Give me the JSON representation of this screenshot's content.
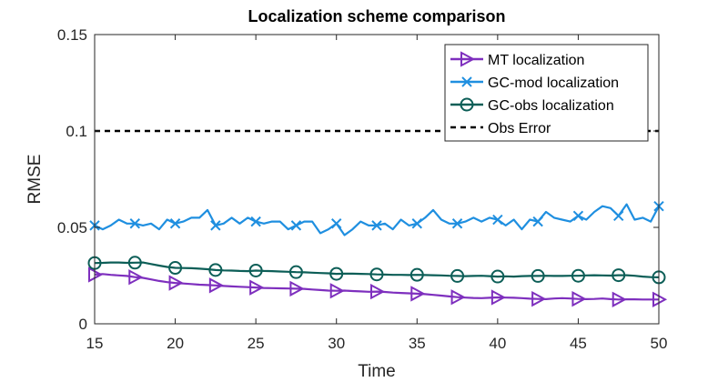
{
  "chart_data": {
    "type": "line",
    "title": "Localization scheme comparison",
    "xlabel": "Time",
    "ylabel": "RMSE",
    "xlim": [
      15,
      50
    ],
    "ylim": [
      0,
      0.15
    ],
    "x_ticks": [
      "15",
      "20",
      "25",
      "30",
      "35",
      "40",
      "45",
      "50"
    ],
    "y_ticks": [
      "0",
      "0.05",
      "0.1",
      "0.15"
    ],
    "legend_position": "top-right",
    "x": [
      15,
      15.5,
      16,
      16.5,
      17,
      17.5,
      18,
      18.5,
      19,
      19.5,
      20,
      20.5,
      21,
      21.5,
      22,
      22.5,
      23,
      23.5,
      24,
      24.5,
      25,
      25.5,
      26,
      26.5,
      27,
      27.5,
      28,
      28.5,
      29,
      29.5,
      30,
      30.5,
      31,
      31.5,
      32,
      32.5,
      33,
      33.5,
      34,
      34.5,
      35,
      35.5,
      36,
      36.5,
      37,
      37.5,
      38,
      38.5,
      39,
      39.5,
      40,
      40.5,
      41,
      41.5,
      42,
      42.5,
      43,
      43.5,
      44,
      44.5,
      45,
      45.5,
      46,
      46.5,
      47,
      47.5,
      48,
      48.5,
      49,
      49.5,
      50
    ],
    "series": [
      {
        "name": "MT localization",
        "color": "#7E2FBE",
        "marker": "triangle-right",
        "marker_every": 5,
        "values": [
          0.0255,
          0.0258,
          0.0254,
          0.0251,
          0.0248,
          0.0242,
          0.0238,
          0.023,
          0.0222,
          0.0216,
          0.0212,
          0.0209,
          0.0206,
          0.0203,
          0.0201,
          0.0199,
          0.0196,
          0.0194,
          0.0192,
          0.019,
          0.0188,
          0.0186,
          0.0185,
          0.0184,
          0.0183,
          0.0182,
          0.0181,
          0.0178,
          0.0175,
          0.0172,
          0.0171,
          0.0172,
          0.017,
          0.0168,
          0.0166,
          0.0167,
          0.0165,
          0.0162,
          0.016,
          0.0158,
          0.0156,
          0.0154,
          0.015,
          0.0146,
          0.0142,
          0.0138,
          0.0136,
          0.0134,
          0.0133,
          0.0135,
          0.0137,
          0.0136,
          0.0135,
          0.0133,
          0.013,
          0.0129,
          0.0128,
          0.0131,
          0.0133,
          0.0131,
          0.0129,
          0.0128,
          0.0129,
          0.0131,
          0.0128,
          0.0126,
          0.0127,
          0.0127,
          0.0126,
          0.0126,
          0.0126
        ]
      },
      {
        "name": "GC-mod localization",
        "color": "#1F8FE0",
        "marker": "x",
        "marker_every": 5,
        "values": [
          0.051,
          0.049,
          0.051,
          0.054,
          0.052,
          0.052,
          0.051,
          0.052,
          0.049,
          0.054,
          0.052,
          0.053,
          0.055,
          0.055,
          0.059,
          0.051,
          0.052,
          0.055,
          0.052,
          0.055,
          0.053,
          0.052,
          0.053,
          0.053,
          0.049,
          0.051,
          0.053,
          0.053,
          0.047,
          0.049,
          0.052,
          0.046,
          0.049,
          0.053,
          0.051,
          0.051,
          0.052,
          0.049,
          0.054,
          0.051,
          0.052,
          0.055,
          0.059,
          0.054,
          0.052,
          0.052,
          0.053,
          0.055,
          0.053,
          0.055,
          0.054,
          0.051,
          0.054,
          0.049,
          0.054,
          0.053,
          0.058,
          0.055,
          0.054,
          0.053,
          0.056,
          0.054,
          0.058,
          0.061,
          0.06,
          0.056,
          0.062,
          0.054,
          0.055,
          0.053,
          0.061
        ]
      },
      {
        "name": "GC-obs localization",
        "color": "#0C5E57",
        "marker": "circle",
        "marker_every": 5,
        "values": [
          0.0315,
          0.0316,
          0.0318,
          0.0318,
          0.0316,
          0.0317,
          0.0318,
          0.031,
          0.0302,
          0.0295,
          0.029,
          0.0289,
          0.0288,
          0.0286,
          0.0283,
          0.0279,
          0.0277,
          0.0276,
          0.0274,
          0.0273,
          0.0276,
          0.0274,
          0.0273,
          0.0271,
          0.027,
          0.0268,
          0.0267,
          0.0265,
          0.0263,
          0.0262,
          0.0259,
          0.026,
          0.026,
          0.0259,
          0.0258,
          0.0256,
          0.0255,
          0.0254,
          0.0254,
          0.0253,
          0.0254,
          0.0253,
          0.0252,
          0.0251,
          0.0249,
          0.0248,
          0.0247,
          0.0248,
          0.0249,
          0.0247,
          0.0245,
          0.0246,
          0.0245,
          0.0247,
          0.0248,
          0.0248,
          0.0249,
          0.0248,
          0.0248,
          0.0249,
          0.0249,
          0.0251,
          0.0252,
          0.0251,
          0.025,
          0.0252,
          0.0252,
          0.0249,
          0.0245,
          0.0242,
          0.0241
        ]
      },
      {
        "name": "Obs Error",
        "color": "#000000",
        "style": "dashed",
        "constant": 0.1
      }
    ]
  }
}
